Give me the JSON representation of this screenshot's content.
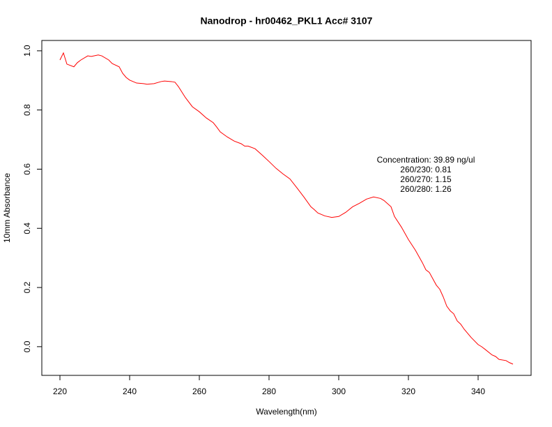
{
  "chart_data": {
    "type": "line",
    "title": "Nanodrop - hr00462_PKL1 Acc# 3107",
    "x_label": "Wavelength(nm)",
    "y_label": "10mm Absorbance",
    "annotations": [
      "Concentration: 39.89 ng/ul",
      "260/230: 0.81",
      "260/270: 1.15",
      "260/280: 1.26"
    ],
    "color": "#ff0000",
    "x": [
      220,
      221,
      222,
      224,
      225,
      226,
      228,
      229,
      231,
      232,
      234,
      235,
      237,
      238,
      239,
      240,
      242,
      244,
      245,
      247,
      249,
      250,
      252,
      253,
      254,
      256,
      258,
      260,
      262,
      264,
      265,
      266,
      268,
      270,
      272,
      273,
      274,
      276,
      278,
      280,
      282,
      284,
      286,
      288,
      290,
      292,
      293,
      294,
      296,
      298,
      300,
      302,
      304,
      306,
      308,
      310,
      312,
      313,
      315,
      316,
      318,
      320,
      322,
      324,
      325,
      326,
      328,
      329,
      330,
      331,
      332,
      333,
      334,
      335,
      336,
      338,
      340,
      341,
      342,
      344,
      345,
      346,
      348,
      349,
      350
    ],
    "values": [
      0.969,
      0.993,
      0.955,
      0.946,
      0.96,
      0.969,
      0.983,
      0.981,
      0.986,
      0.983,
      0.969,
      0.957,
      0.946,
      0.924,
      0.91,
      0.901,
      0.891,
      0.889,
      0.887,
      0.889,
      0.896,
      0.898,
      0.896,
      0.894,
      0.879,
      0.842,
      0.811,
      0.794,
      0.773,
      0.757,
      0.742,
      0.726,
      0.709,
      0.695,
      0.686,
      0.678,
      0.678,
      0.669,
      0.648,
      0.626,
      0.603,
      0.584,
      0.567,
      0.537,
      0.506,
      0.473,
      0.463,
      0.452,
      0.442,
      0.437,
      0.44,
      0.454,
      0.473,
      0.485,
      0.499,
      0.506,
      0.501,
      0.494,
      0.473,
      0.44,
      0.404,
      0.362,
      0.326,
      0.284,
      0.26,
      0.251,
      0.208,
      0.194,
      0.168,
      0.137,
      0.121,
      0.111,
      0.087,
      0.076,
      0.059,
      0.031,
      0.007,
      0.0,
      -0.009,
      -0.028,
      -0.033,
      -0.043,
      -0.047,
      -0.054,
      -0.059
    ],
    "xlim": [
      214.8,
      355.2
    ],
    "ylim": [
      -0.097,
      1.035
    ],
    "xticks": [
      220,
      240,
      260,
      280,
      300,
      320,
      340
    ],
    "yticks": [
      {
        "value": 0,
        "label": "0.0"
      },
      0.2,
      0.4,
      0.6,
      0.8,
      {
        "value": 1,
        "label": "1.0"
      }
    ]
  }
}
